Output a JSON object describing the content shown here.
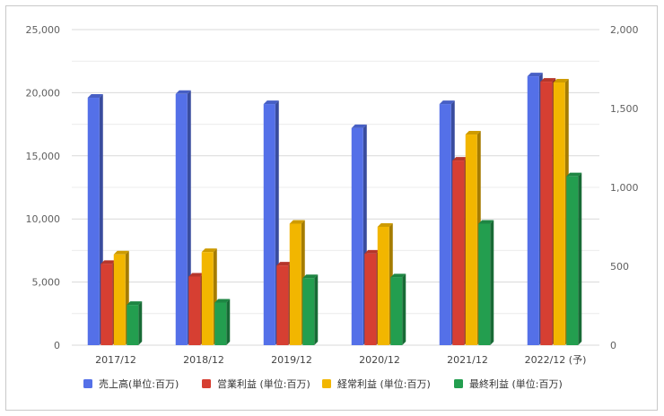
{
  "chart_data": {
    "type": "bar",
    "categories": [
      "2017/12",
      "2018/12",
      "2019/12",
      "2020/12",
      "2021/12",
      "2022/12 (予)"
    ],
    "series": [
      {
        "name": "売上高(単位:百万)",
        "axis": "left",
        "color": "#5470e8",
        "values": [
          19600,
          19900,
          19100,
          17200,
          19100,
          21300
        ]
      },
      {
        "name": "営業利益 (単位:百万)",
        "axis": "right",
        "color": "#d63f32",
        "values": [
          515,
          435,
          505,
          580,
          1170,
          1670
        ]
      },
      {
        "name": "経常利益 (単位:百万)",
        "axis": "right",
        "color": "#f2b600",
        "values": [
          575,
          590,
          770,
          750,
          1335,
          1665
        ]
      },
      {
        "name": "最終利益 (単位:百万)",
        "axis": "right",
        "color": "#239e4f",
        "values": [
          255,
          270,
          425,
          430,
          770,
          1070
        ]
      }
    ],
    "y_left": {
      "min": 0,
      "max": 25000,
      "ticks": [
        "0",
        "5,000",
        "10,000",
        "15,000",
        "20,000",
        "25,000"
      ]
    },
    "y_right": {
      "min": 0,
      "max": 2000,
      "ticks": [
        "0",
        "500",
        "1,000",
        "1,500",
        "2,000"
      ]
    },
    "legend_position": "bottom",
    "grid": true
  }
}
